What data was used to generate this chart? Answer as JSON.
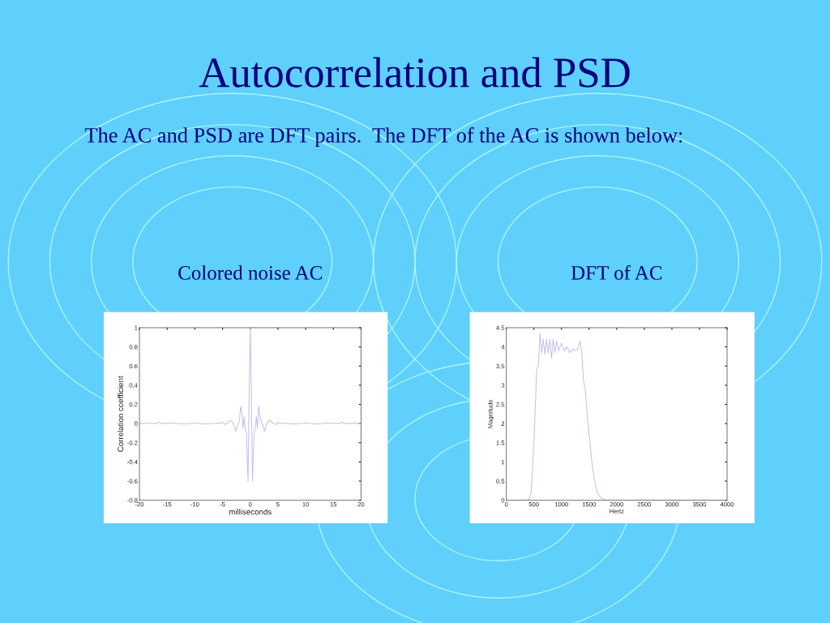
{
  "chart_data": [
    {
      "type": "line",
      "title": "Colored noise AC",
      "xlabel": "milliseconds",
      "ylabel": "Correlation coefficient",
      "annotations": [
        "Autocorrelation and PSD",
        "The AC and PSD are DFT pairs.  The DFT of the AC is shown below:"
      ],
      "x": [
        -20,
        -18.5,
        -17,
        -16.5,
        -16,
        -14,
        -12,
        -10,
        -8,
        -6,
        -5.3,
        -5,
        -4.6,
        -4,
        -3.5,
        -3,
        -2.6,
        -2.3,
        -2,
        -1.7,
        -1.5,
        -1.3,
        -1.1,
        -0.9,
        -0.7,
        -0.4,
        -0.2,
        0,
        0.2,
        0.4,
        0.7,
        0.9,
        1.1,
        1.3,
        1.5,
        1.7,
        2,
        2.3,
        2.6,
        3,
        3.5,
        4,
        4.6,
        5,
        5.3,
        6,
        8,
        10,
        12,
        14,
        16,
        16.5,
        17,
        18.5,
        20
      ],
      "series": [
        {
          "color": "#c4c4ee",
          "values": [
            0,
            0.005,
            0,
            0.015,
            0,
            0.005,
            -0.005,
            0.005,
            -0.005,
            0.005,
            0,
            0.015,
            -0.01,
            0.01,
            0.035,
            0,
            -0.08,
            -0.02,
            0.02,
            0.18,
            0.1,
            -0.05,
            0.07,
            -0.05,
            -0.1,
            -0.6,
            0.3,
            1.0,
            0.3,
            -0.6,
            -0.1,
            -0.05,
            0.07,
            -0.05,
            0.18,
            0.1,
            0.02,
            -0.02,
            -0.08,
            0,
            0.035,
            0.01,
            -0.01,
            0.015,
            0,
            0.005,
            -0.005,
            0.005,
            -0.005,
            0.005,
            0,
            0.015,
            0,
            0.005,
            0
          ]
        }
      ],
      "xlim": [
        -20,
        20
      ],
      "ylim": [
        -0.8,
        1
      ],
      "xticks": [
        -20,
        -15,
        -10,
        -5,
        0,
        5,
        10,
        15,
        20
      ],
      "yticks": [
        -0.8,
        -0.6,
        -0.4,
        -0.2,
        0,
        0.2,
        0.4,
        0.6,
        0.8,
        1
      ],
      "grid": false,
      "legend": false
    },
    {
      "type": "line",
      "title": "DFT of AC",
      "xlabel": "Hertz",
      "ylabel": "Magnitude",
      "x": [
        0,
        380,
        420,
        450,
        480,
        500,
        530,
        550,
        580,
        610,
        640,
        670,
        700,
        730,
        760,
        790,
        820,
        850,
        880,
        910,
        950,
        1000,
        1050,
        1100,
        1150,
        1200,
        1250,
        1300,
        1340,
        1370,
        1400,
        1430,
        1480,
        1550,
        1600,
        1650,
        1700,
        1750,
        1850,
        4000
      ],
      "series": [
        {
          "color": "#c4c4ee",
          "values": [
            0,
            0,
            0.05,
            0.2,
            0.9,
            1.5,
            2.6,
            3.4,
            3.5,
            4.35,
            3.85,
            4.2,
            3.8,
            4.2,
            3.85,
            4.2,
            3.7,
            4.2,
            3.85,
            4.15,
            3.9,
            4.1,
            3.9,
            4.0,
            3.85,
            3.95,
            3.9,
            3.95,
            4.15,
            3.8,
            3.1,
            2.9,
            2.0,
            1.0,
            0.5,
            0.2,
            0.08,
            0.03,
            0,
            0
          ]
        }
      ],
      "xlim": [
        0,
        4000
      ],
      "ylim": [
        0,
        4.5
      ],
      "xticks": [
        0,
        500,
        1000,
        1500,
        2000,
        2500,
        3000,
        3500,
        4000
      ],
      "yticks": [
        0,
        0.5,
        1,
        1.5,
        2,
        2.5,
        3,
        3.5,
        4,
        4.5
      ],
      "grid": false,
      "legend": false
    }
  ]
}
